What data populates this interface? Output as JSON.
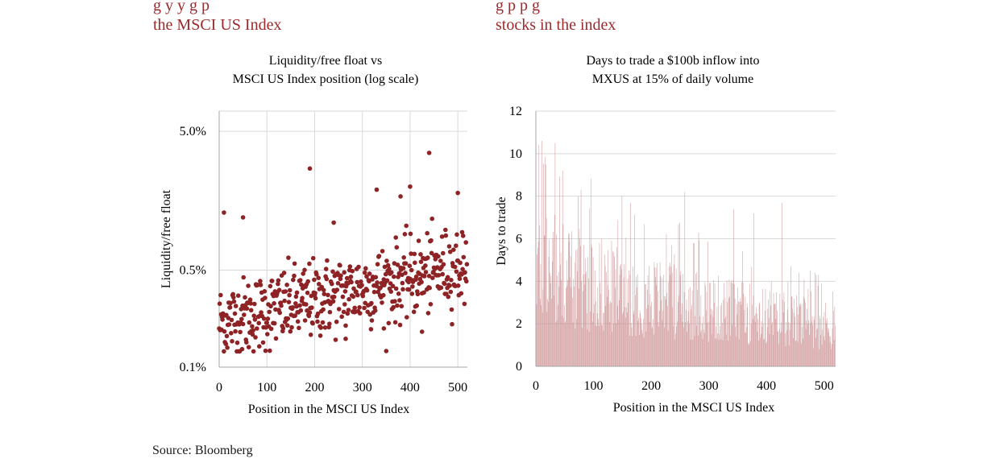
{
  "headings": {
    "left": {
      "line1": "g   y    y                          g        p   ",
      "line2": "the MSCI US Index"
    },
    "right": {
      "line1": "                          g       p         p                   g   ",
      "line2": "stocks in the index"
    }
  },
  "source": "Source: Bloomberg",
  "colors": {
    "heading": "#9b2a2c",
    "scatter": "#8e2326",
    "bars": "#c98a8c",
    "grid": "#d9d9d9",
    "axis": "#a6a6a6"
  },
  "chart_data": [
    {
      "type": "scatter",
      "title": [
        "Liquidity/free float vs",
        "MSCI US Index position (log scale)"
      ],
      "xlabel": "Position in the MSCI US Index",
      "ylabel": "Liquidity/free float",
      "xlim": [
        0,
        520
      ],
      "ylim": [
        0.001,
        0.07
      ],
      "yscale": "log",
      "xticks": [
        0,
        100,
        200,
        300,
        400,
        500
      ],
      "xtick_labels": [
        "0",
        "100",
        "200",
        "300",
        "400",
        "500"
      ],
      "yticks": [
        0.001,
        0.005,
        0.05
      ],
      "ytick_labels": [
        "0.1%",
        "0.5%",
        "5.0%"
      ],
      "grid": true,
      "n_points": 520,
      "trend": {
        "start": 0.0021,
        "end": 0.0055
      },
      "outliers": [
        {
          "x": 10,
          "y": 0.013
        },
        {
          "x": 50,
          "y": 0.012
        },
        {
          "x": 190,
          "y": 0.027
        },
        {
          "x": 330,
          "y": 0.019
        },
        {
          "x": 440,
          "y": 0.035
        },
        {
          "x": 400,
          "y": 0.02
        },
        {
          "x": 500,
          "y": 0.018
        },
        {
          "x": 240,
          "y": 0.011
        },
        {
          "x": 380,
          "y": 0.017
        },
        {
          "x": 265,
          "y": 0.0016
        },
        {
          "x": 425,
          "y": 0.0018
        },
        {
          "x": 345,
          "y": 0.0019
        }
      ]
    },
    {
      "type": "bar",
      "title": [
        "Days to trade a $100b inflow into",
        "MXUS at 15% of daily volume"
      ],
      "xlabel": "Position in the MSCI US Index",
      "ylabel": "Days to trade",
      "xlim": [
        0,
        520
      ],
      "ylim": [
        0,
        12
      ],
      "xticks": [
        0,
        100,
        200,
        300,
        400,
        500
      ],
      "xtick_labels": [
        "0",
        "100",
        "200",
        "300",
        "400",
        "500"
      ],
      "yticks": [
        0,
        2,
        4,
        6,
        8,
        10,
        12
      ],
      "ytick_labels": [
        "0",
        "2",
        "4",
        "6",
        "8",
        "10",
        "12"
      ],
      "grid": true,
      "n_bars": 520,
      "envelope": {
        "start": 8.5,
        "end": 3.0
      },
      "spikes": [
        {
          "x": 5,
          "y": 10.4
        },
        {
          "x": 10,
          "y": 10.6
        },
        {
          "x": 33,
          "y": 10.5
        },
        {
          "x": 17,
          "y": 9.5
        },
        {
          "x": 46,
          "y": 9.2
        },
        {
          "x": 78,
          "y": 8.3
        },
        {
          "x": 258,
          "y": 8.2
        },
        {
          "x": 427,
          "y": 7.7
        },
        {
          "x": 343,
          "y": 7.4
        },
        {
          "x": 378,
          "y": 7.2
        },
        {
          "x": 226,
          "y": 6.2
        },
        {
          "x": 476,
          "y": 4.5
        },
        {
          "x": 490,
          "y": 4.3
        },
        {
          "x": 518,
          "y": 2.8
        }
      ]
    }
  ]
}
